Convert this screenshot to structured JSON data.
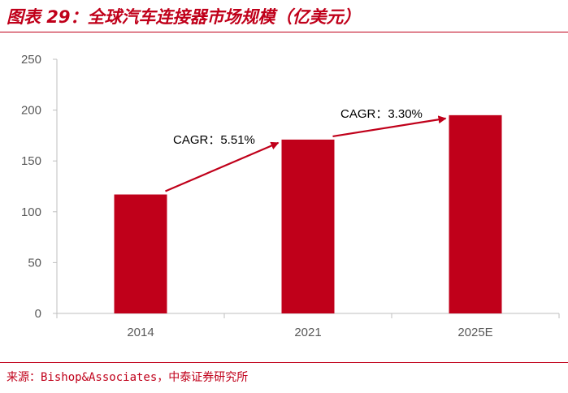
{
  "figure": {
    "title": "图表 29：全球汽车连接器市场规模（亿美元）",
    "source": "来源：Bishop&Associates，中泰证券研究所"
  },
  "chart_data": {
    "type": "bar",
    "title": "全球汽车连接器市场规模（亿美元）",
    "categories": [
      "2014",
      "2021",
      "2025E"
    ],
    "values": [
      117,
      171,
      195
    ],
    "ylim": [
      0,
      250
    ],
    "yticks": [
      0,
      50,
      100,
      150,
      200,
      250
    ],
    "xlabel": "",
    "ylabel": "",
    "grid": false,
    "bar_color": "#c0001a",
    "annotations": [
      {
        "text": "CAGR：5.51%",
        "from": "2014",
        "to": "2021"
      },
      {
        "text": "CAGR：3.30%",
        "from": "2021",
        "to": "2025E"
      }
    ]
  }
}
